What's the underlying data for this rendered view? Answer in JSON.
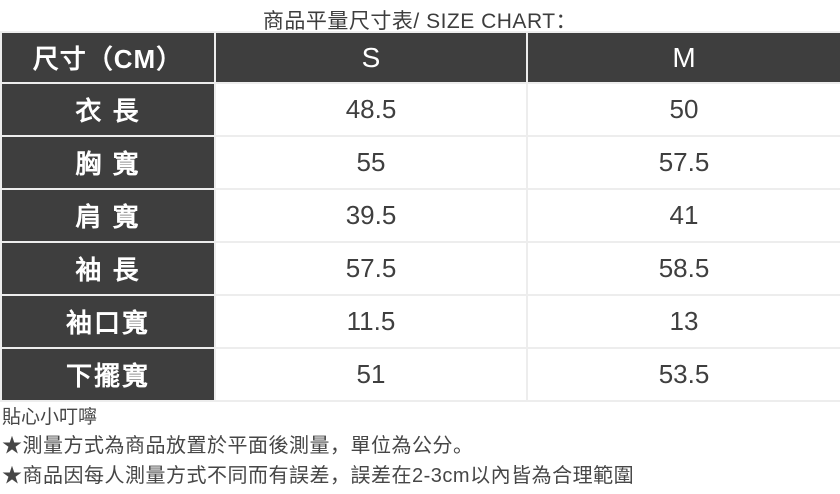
{
  "title": "商品平量尺寸表/ SIZE CHART：",
  "chart_data": {
    "type": "table",
    "columns": [
      "尺寸（CM）",
      "S",
      "M"
    ],
    "rows": [
      {
        "label": "衣 長",
        "s": "48.5",
        "m": "50"
      },
      {
        "label": "胸 寬",
        "s": "55",
        "m": "57.5"
      },
      {
        "label": "肩 寬",
        "s": "39.5",
        "m": "41"
      },
      {
        "label": "袖 長",
        "s": "57.5",
        "m": "58.5"
      },
      {
        "label": "袖口寬",
        "s": "11.5",
        "m": "13"
      },
      {
        "label": "下擺寬",
        "s": "51",
        "m": "53.5"
      }
    ],
    "title": "商品平量尺寸表/ SIZE CHART：",
    "unit": "CM"
  },
  "notes": {
    "heading": "貼心小叮嚀",
    "lines": [
      "★測量方式為商品放置於平面後測量，單位為公分。",
      "★商品因每人測量方式不同而有誤差，誤差在2-3cm以內皆為合理範圍"
    ]
  },
  "colors": {
    "header_bg": "#3e3e3e",
    "header_text": "#ffffff",
    "value_text": "#3f3f3f",
    "grid_border": "#ededed"
  }
}
